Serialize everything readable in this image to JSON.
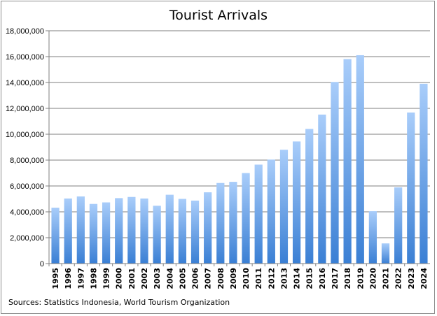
{
  "chart_data": {
    "type": "bar",
    "title": "Tourist Arrivals",
    "xlabel": "",
    "ylabel": "",
    "ylim": [
      0,
      18000000
    ],
    "yticks": [
      "0",
      "2,000,000",
      "4,000,000",
      "6,000,000",
      "8,000,000",
      "10,000,000",
      "12,000,000",
      "14,000,000",
      "16,000,000",
      "18,000,000"
    ],
    "ytick_values": [
      0,
      2000000,
      4000000,
      6000000,
      8000000,
      10000000,
      12000000,
      14000000,
      16000000,
      18000000
    ],
    "grid": true,
    "legend": "none",
    "categories": [
      "1995",
      "1996",
      "1997",
      "1998",
      "1999",
      "2000",
      "2001",
      "2002",
      "2003",
      "2004",
      "2005",
      "2006",
      "2007",
      "2008",
      "2009",
      "2010",
      "2011",
      "2012",
      "2013",
      "2014",
      "2015",
      "2016",
      "2017",
      "2018",
      "2019",
      "2020",
      "2021",
      "2022",
      "2023",
      "2024"
    ],
    "values": [
      4320000,
      5030000,
      5190000,
      4610000,
      4730000,
      5060000,
      5150000,
      5030000,
      4470000,
      5320000,
      5000000,
      4870000,
      5510000,
      6230000,
      6320000,
      7000000,
      7650000,
      8040000,
      8800000,
      9440000,
      10410000,
      11520000,
      14040000,
      15810000,
      16110000,
      4050000,
      1560000,
      5890000,
      11680000,
      13900000
    ],
    "source": "Sources: Statistics Indonesia, World Tourism Organization",
    "colors": {
      "bar_top": "#a9cdfa",
      "bar_bottom": "#3a7fd4",
      "grid": "#7f7f7f",
      "axis": "#7f7f7f",
      "border": "#8c8c8c"
    }
  }
}
